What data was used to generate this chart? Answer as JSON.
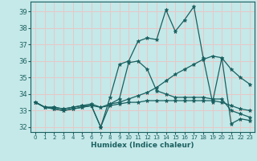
{
  "xlabel": "Humidex (Indice chaleur)",
  "background_color": "#c5e8e8",
  "grid_color": "#e8c8c8",
  "line_color": "#1a6060",
  "xlim": [
    -0.5,
    23.5
  ],
  "ylim": [
    31.7,
    39.6
  ],
  "yticks": [
    32,
    33,
    34,
    35,
    36,
    37,
    38,
    39
  ],
  "xticks": [
    0,
    1,
    2,
    3,
    4,
    5,
    6,
    7,
    8,
    9,
    10,
    11,
    12,
    13,
    14,
    15,
    16,
    17,
    18,
    19,
    20,
    21,
    22,
    23
  ],
  "series": [
    [
      33.5,
      33.2,
      33.1,
      33.0,
      33.1,
      33.2,
      33.3,
      32.0,
      33.8,
      35.8,
      36.0,
      37.2,
      37.4,
      37.3,
      39.1,
      37.8,
      38.5,
      39.3,
      36.2,
      33.5,
      36.2,
      32.2,
      32.5,
      32.4
    ],
    [
      33.5,
      33.2,
      33.1,
      33.0,
      33.1,
      33.2,
      33.3,
      32.0,
      33.4,
      33.7,
      35.9,
      36.0,
      35.5,
      34.2,
      34.0,
      33.8,
      33.8,
      33.8,
      33.8,
      33.7,
      33.7,
      33.0,
      32.8,
      32.6
    ],
    [
      33.5,
      33.2,
      33.2,
      33.1,
      33.2,
      33.3,
      33.4,
      33.2,
      33.4,
      33.5,
      33.7,
      33.9,
      34.1,
      34.4,
      34.8,
      35.2,
      35.5,
      35.8,
      36.1,
      36.3,
      36.2,
      35.5,
      35.0,
      34.6
    ],
    [
      33.5,
      33.2,
      33.2,
      33.1,
      33.2,
      33.3,
      33.3,
      33.2,
      33.3,
      33.4,
      33.5,
      33.5,
      33.6,
      33.6,
      33.6,
      33.6,
      33.6,
      33.6,
      33.6,
      33.6,
      33.5,
      33.3,
      33.1,
      33.0
    ]
  ]
}
